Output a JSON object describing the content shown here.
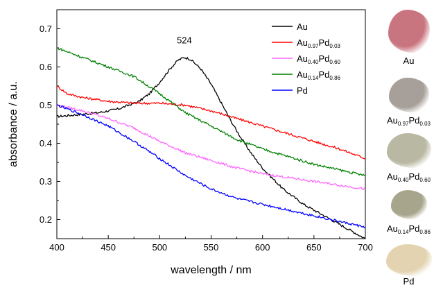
{
  "chart_data": {
    "type": "line",
    "xlabel": "wavelength / nm",
    "ylabel": "absorbance / a.u.",
    "xlim": [
      400,
      700
    ],
    "ylim": [
      0.15,
      0.75
    ],
    "xticks": [
      400,
      450,
      500,
      550,
      600,
      650,
      700
    ],
    "yticks": [
      0.2,
      0.3,
      0.4,
      0.5,
      0.6,
      0.7
    ],
    "grid": false,
    "legend_position": "top-right",
    "annotations": [
      {
        "text": "524",
        "x": 524,
        "y": 0.655
      }
    ],
    "series": [
      {
        "name": "Au",
        "base": "Au",
        "sub1": "",
        "mid": "",
        "sub2": "",
        "color": "#000000",
        "x": [
          400,
          420,
          440,
          460,
          480,
          490,
          500,
          510,
          518,
          524,
          530,
          540,
          550,
          560,
          570,
          580,
          590,
          600,
          620,
          640,
          660,
          680,
          700
        ],
        "y": [
          0.47,
          0.475,
          0.48,
          0.49,
          0.51,
          0.53,
          0.56,
          0.595,
          0.618,
          0.625,
          0.62,
          0.595,
          0.555,
          0.505,
          0.455,
          0.41,
          0.37,
          0.335,
          0.28,
          0.24,
          0.21,
          0.18,
          0.15
        ]
      },
      {
        "name": "Au0.97Pd0.03",
        "base": "Au",
        "sub1": "0.97",
        "mid": "Pd",
        "sub2": "0.03",
        "color": "#ff0000",
        "x": [
          400,
          410,
          425,
          450,
          475,
          500,
          525,
          550,
          575,
          600,
          625,
          650,
          675,
          700
        ],
        "y": [
          0.55,
          0.53,
          0.52,
          0.51,
          0.505,
          0.505,
          0.5,
          0.485,
          0.465,
          0.445,
          0.425,
          0.405,
          0.385,
          0.36
        ]
      },
      {
        "name": "Au0.40Pd0.60",
        "base": "Au",
        "sub1": "0.40",
        "mid": "Pd",
        "sub2": "0.60",
        "color": "#ff66ff",
        "x": [
          400,
          425,
          450,
          475,
          500,
          525,
          550,
          575,
          600,
          625,
          650,
          675,
          700
        ],
        "y": [
          0.5,
          0.485,
          0.465,
          0.44,
          0.405,
          0.375,
          0.355,
          0.335,
          0.32,
          0.31,
          0.3,
          0.29,
          0.28
        ]
      },
      {
        "name": "Au0.14Pd0.86",
        "base": "Au",
        "sub1": "0.14",
        "mid": "Pd",
        "sub2": "0.86",
        "color": "#008000",
        "x": [
          400,
          425,
          450,
          475,
          500,
          525,
          550,
          575,
          600,
          625,
          650,
          675,
          700
        ],
        "y": [
          0.65,
          0.625,
          0.6,
          0.575,
          0.53,
          0.48,
          0.445,
          0.41,
          0.385,
          0.365,
          0.345,
          0.33,
          0.315
        ]
      },
      {
        "name": "Pd",
        "base": "Pd",
        "sub1": "",
        "mid": "",
        "sub2": "",
        "color": "#0000ff",
        "x": [
          400,
          425,
          450,
          475,
          500,
          525,
          550,
          575,
          600,
          625,
          650,
          675,
          700
        ],
        "y": [
          0.5,
          0.475,
          0.445,
          0.405,
          0.36,
          0.315,
          0.28,
          0.255,
          0.24,
          0.225,
          0.21,
          0.195,
          0.18
        ]
      }
    ]
  },
  "samples": [
    {
      "name": "Au",
      "base": "Au",
      "sub1": "",
      "mid": "",
      "sub2": "",
      "color": "#c9757f"
    },
    {
      "name": "Au0.97Pd0.03",
      "base": "Au",
      "sub1": "0.97",
      "mid": "Pd",
      "sub2": "0.03",
      "color": "#a79f99"
    },
    {
      "name": "Au0.40Pd0.60",
      "base": "Au",
      "sub1": "0.40",
      "mid": "Pd",
      "sub2": "0.60",
      "color": "#b9b8a3"
    },
    {
      "name": "Au0.14Pd0.86",
      "base": "Au",
      "sub1": "0.14",
      "mid": "Pd",
      "sub2": "0.86",
      "color": "#a7a58b"
    },
    {
      "name": "Pd",
      "base": "Pd",
      "sub1": "",
      "mid": "",
      "sub2": "",
      "color": "#e3d3b1"
    }
  ]
}
